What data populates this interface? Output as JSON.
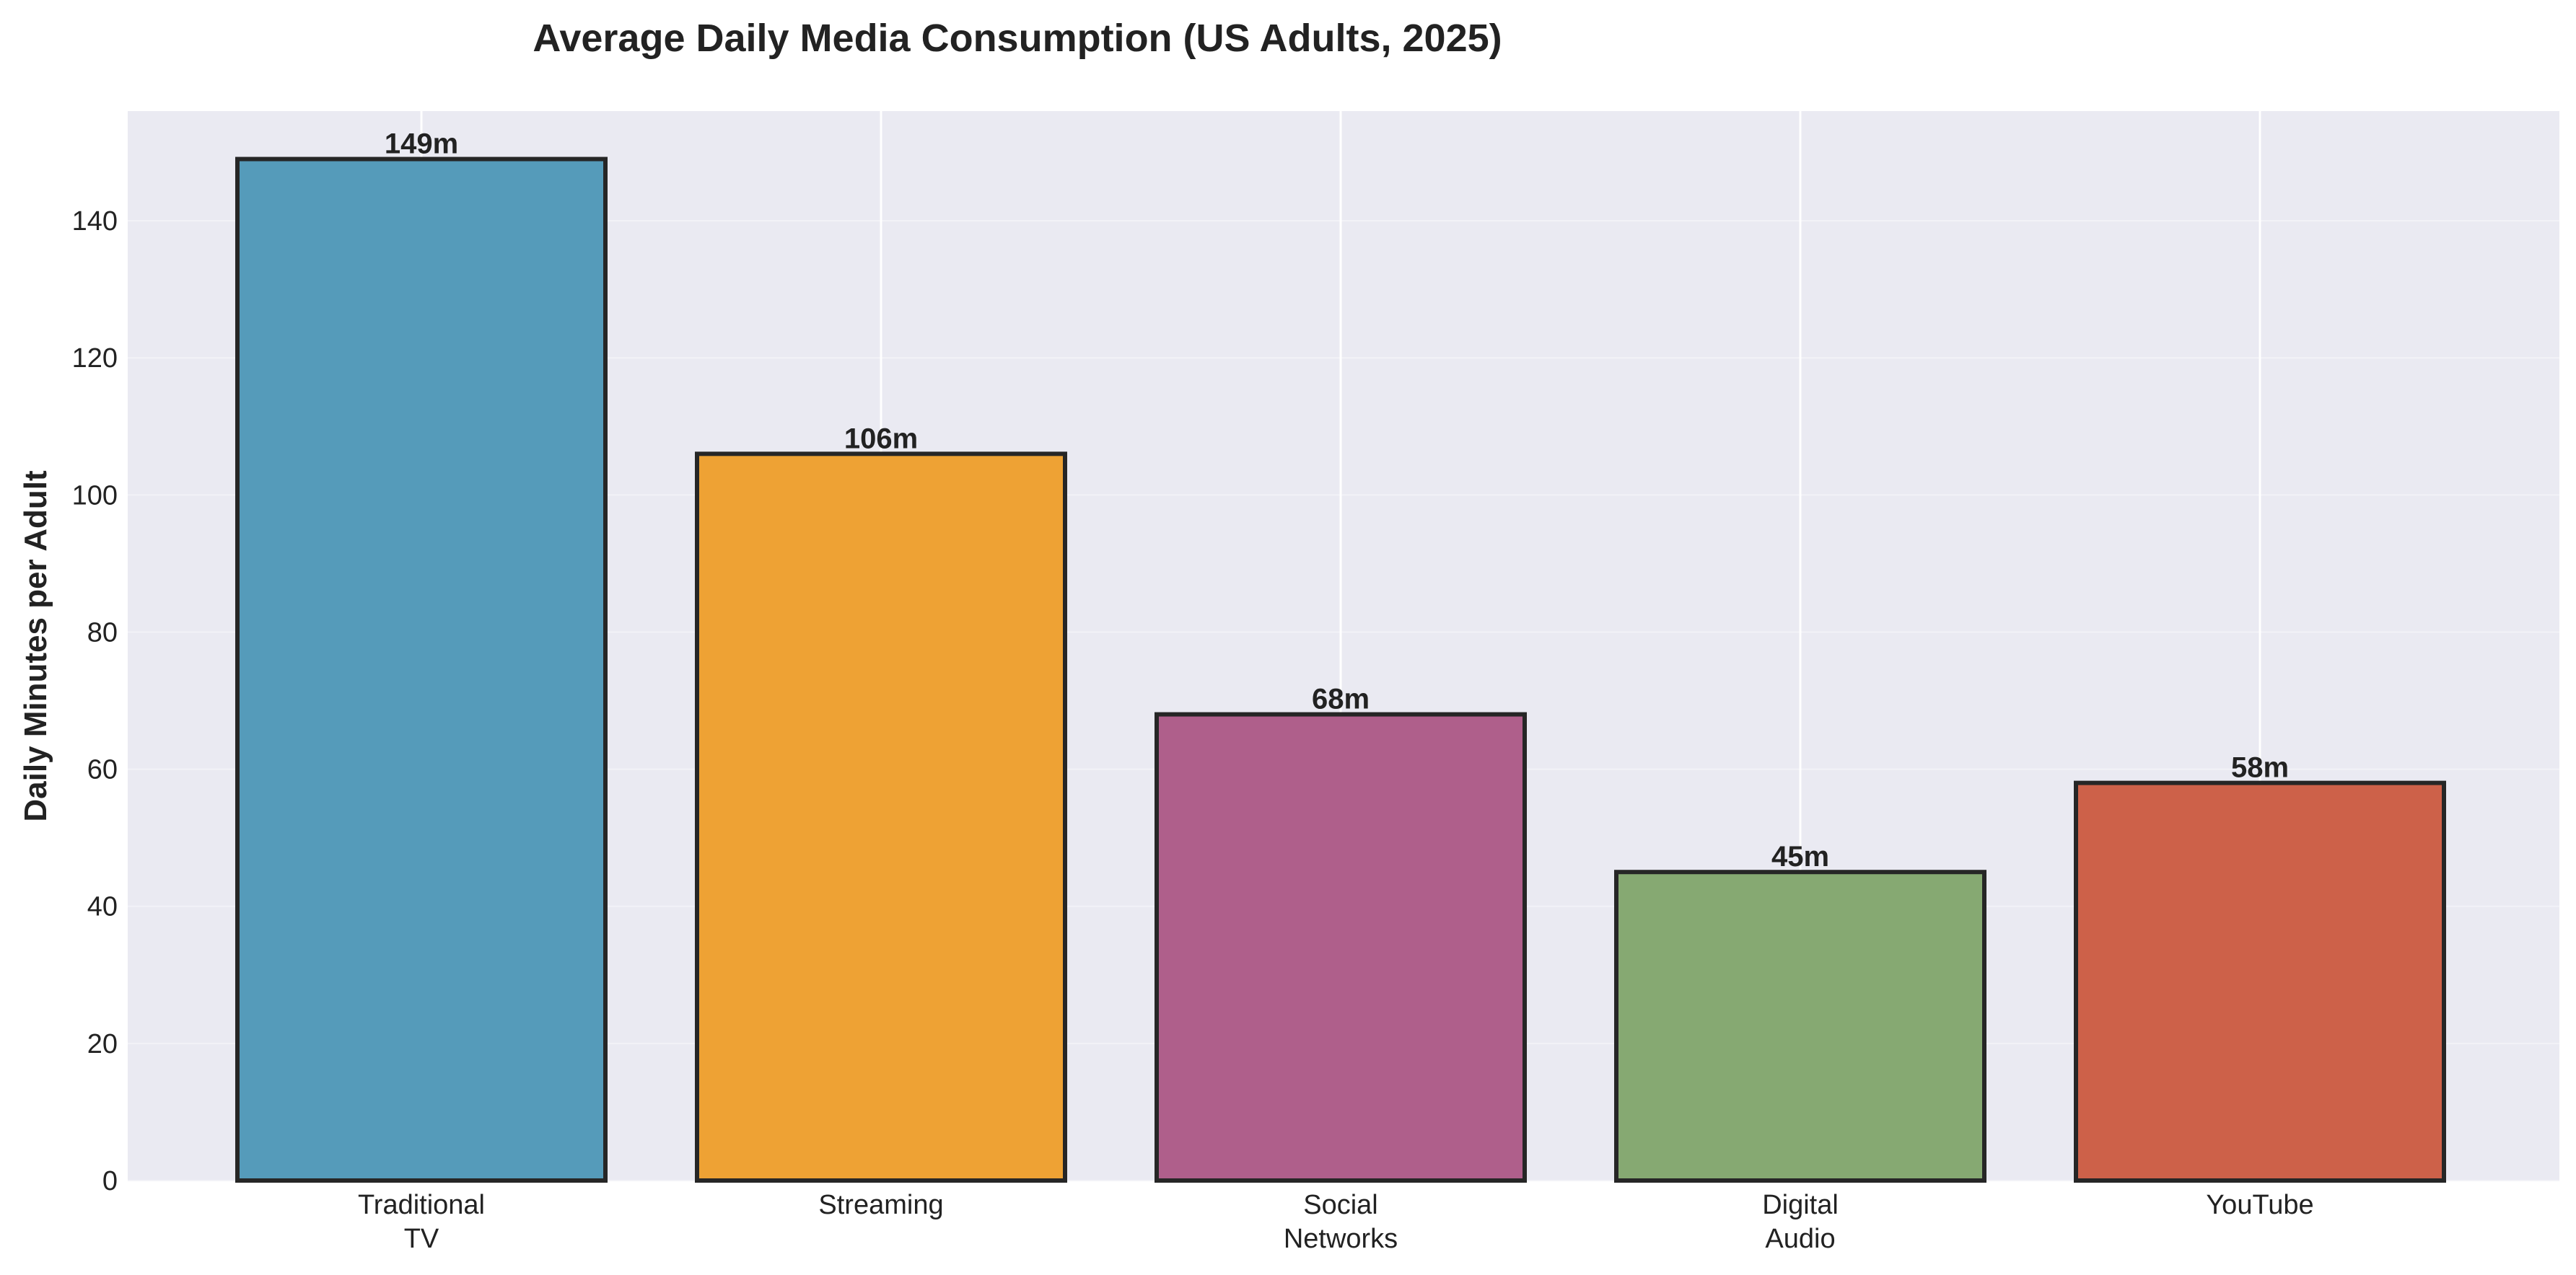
{
  "chart_data": {
    "type": "bar",
    "title": "Average Daily Media Consumption (US Adults, 2025)",
    "xlabel": "",
    "ylabel": "Daily Minutes per Adult",
    "categories": [
      [
        "Traditional",
        "TV"
      ],
      [
        "Streaming"
      ],
      [
        "Social",
        "Networks"
      ],
      [
        "Digital",
        "Audio"
      ],
      [
        "YouTube"
      ]
    ],
    "values": [
      149,
      106,
      68,
      45,
      58
    ],
    "value_labels": [
      "149m",
      "106m",
      "68m",
      "45m",
      "58m"
    ],
    "colors": [
      "#559bba",
      "#eea234",
      "#af5f8b",
      "#86a972",
      "#cd6149"
    ],
    "ylim": [
      0,
      156
    ],
    "yticks": [
      0,
      20,
      40,
      60,
      80,
      100,
      120,
      140
    ],
    "grid": true,
    "plot_background": "#eaeaf2",
    "edge_color": "#262626"
  }
}
